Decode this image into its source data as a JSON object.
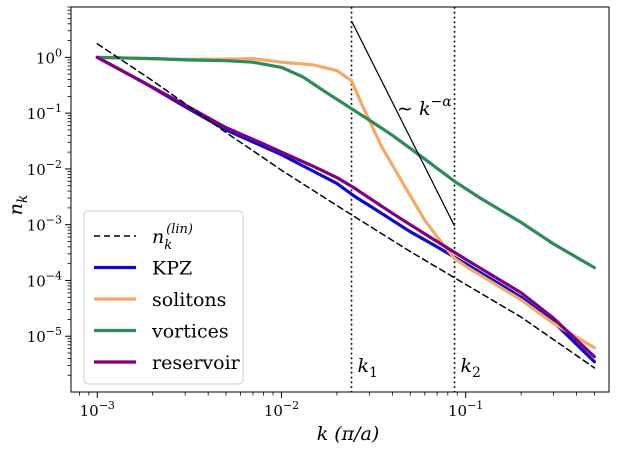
{
  "chart_data": {
    "type": "line",
    "x_scale": "log",
    "y_scale": "log",
    "xlim": [
      0.00072,
      0.6
    ],
    "ylim": [
      1e-06,
      8
    ],
    "xlabel": "k (π/a)",
    "ylabel": "n_k",
    "x_ticks": [
      {
        "value": 0.001,
        "base": "10",
        "exp": "−3"
      },
      {
        "value": 0.01,
        "base": "10",
        "exp": "−2"
      },
      {
        "value": 0.1,
        "base": "10",
        "exp": "−1"
      }
    ],
    "y_ticks": [
      {
        "value": 1,
        "base": "10",
        "exp": "0"
      },
      {
        "value": 0.1,
        "base": "10",
        "exp": "−1"
      },
      {
        "value": 0.01,
        "base": "10",
        "exp": "−2"
      },
      {
        "value": 0.001,
        "base": "10",
        "exp": "−3"
      },
      {
        "value": 0.0001,
        "base": "10",
        "exp": "−4"
      },
      {
        "value": 1e-05,
        "base": "10",
        "exp": "−5"
      }
    ],
    "vertical_lines": [
      {
        "x": 0.024,
        "label": "k",
        "sub": "1"
      },
      {
        "x": 0.087,
        "label": "k",
        "sub": "2"
      }
    ],
    "power_law_annotation": {
      "prefix": "∼ k",
      "exponent": "−α",
      "line": [
        [
          0.024,
          4.5
        ],
        [
          0.087,
          0.00095
        ]
      ]
    },
    "series": [
      {
        "name": "n",
        "name_sub": "k",
        "name_sup": "(lin)",
        "color": "#000000",
        "dash": true,
        "points": [
          [
            0.001,
            1.75
          ],
          [
            0.002,
            0.38
          ],
          [
            0.005,
            0.045
          ],
          [
            0.01,
            0.0095
          ],
          [
            0.02,
            0.0022
          ],
          [
            0.05,
            0.00033
          ],
          [
            0.1,
            8.5e-05
          ],
          [
            0.2,
            2.2e-05
          ],
          [
            0.5,
            2.7e-06
          ]
        ]
      },
      {
        "name": "KPZ",
        "color": "#0a0ac8",
        "points": [
          [
            0.001,
            1
          ],
          [
            0.0018,
            0.35
          ],
          [
            0.003,
            0.13
          ],
          [
            0.005,
            0.05
          ],
          [
            0.008,
            0.025
          ],
          [
            0.01,
            0.018
          ],
          [
            0.015,
            0.009
          ],
          [
            0.02,
            0.0055
          ],
          [
            0.025,
            0.0032
          ],
          [
            0.03,
            0.0022
          ],
          [
            0.04,
            0.0012
          ],
          [
            0.05,
            0.00075
          ],
          [
            0.07,
            0.0004
          ],
          [
            0.1,
            0.0002
          ],
          [
            0.2,
            5e-05
          ],
          [
            0.3,
            1.8e-05
          ],
          [
            0.5,
            3.5e-06
          ]
        ]
      },
      {
        "name": "solitons",
        "color": "#f5a964",
        "points": [
          [
            0.001,
            1
          ],
          [
            0.002,
            0.95
          ],
          [
            0.003,
            0.92
          ],
          [
            0.005,
            0.93
          ],
          [
            0.007,
            0.95
          ],
          [
            0.01,
            0.82
          ],
          [
            0.015,
            0.73
          ],
          [
            0.02,
            0.58
          ],
          [
            0.024,
            0.38
          ],
          [
            0.028,
            0.12
          ],
          [
            0.035,
            0.025
          ],
          [
            0.045,
            0.006
          ],
          [
            0.06,
            0.0012
          ],
          [
            0.075,
            0.00045
          ],
          [
            0.087,
            0.00025
          ],
          [
            0.1,
            0.00018
          ],
          [
            0.15,
            8e-05
          ],
          [
            0.2,
            4.5e-05
          ],
          [
            0.3,
            1.7e-05
          ],
          [
            0.5,
            6.2e-06
          ]
        ]
      },
      {
        "name": "vortices",
        "color": "#2e8b57",
        "points": [
          [
            0.001,
            1
          ],
          [
            0.002,
            0.95
          ],
          [
            0.003,
            0.9
          ],
          [
            0.005,
            0.87
          ],
          [
            0.007,
            0.82
          ],
          [
            0.01,
            0.66
          ],
          [
            0.013,
            0.45
          ],
          [
            0.017,
            0.25
          ],
          [
            0.024,
            0.12
          ],
          [
            0.03,
            0.075
          ],
          [
            0.04,
            0.04
          ],
          [
            0.06,
            0.015
          ],
          [
            0.087,
            0.006
          ],
          [
            0.12,
            0.003
          ],
          [
            0.2,
            0.0011
          ],
          [
            0.3,
            0.00045
          ],
          [
            0.5,
            0.00017
          ]
        ]
      },
      {
        "name": "reservoir",
        "color": "#800080",
        "points": [
          [
            0.001,
            1
          ],
          [
            0.0018,
            0.35
          ],
          [
            0.003,
            0.14
          ],
          [
            0.005,
            0.055
          ],
          [
            0.008,
            0.028
          ],
          [
            0.01,
            0.02
          ],
          [
            0.015,
            0.011
          ],
          [
            0.02,
            0.007
          ],
          [
            0.025,
            0.0045
          ],
          [
            0.03,
            0.003
          ],
          [
            0.04,
            0.0016
          ],
          [
            0.05,
            0.001
          ],
          [
            0.07,
            0.0005
          ],
          [
            0.1,
            0.00024
          ],
          [
            0.2,
            6e-05
          ],
          [
            0.3,
            2.1e-05
          ],
          [
            0.5,
            4.3e-06
          ]
        ]
      }
    ],
    "legend_position": "lower-left"
  }
}
